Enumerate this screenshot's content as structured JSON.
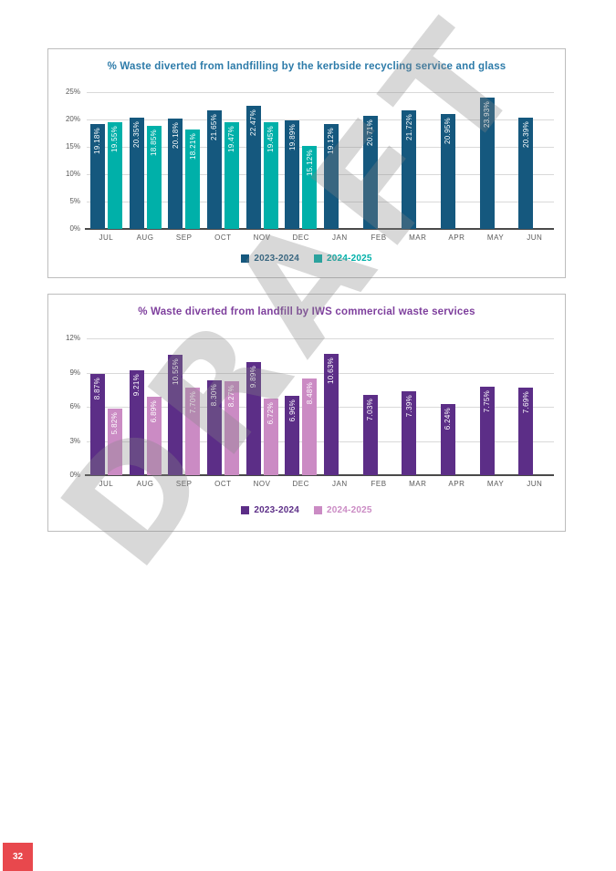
{
  "page": {
    "watermark": "DRAFT",
    "number": "32",
    "badge_color": "#e8484d"
  },
  "charts": [
    {
      "type": "bar",
      "title": "% Waste diverted from landfilling by the kerbside recycling service and glass",
      "title_color": "#2d7ba9",
      "categories": [
        "JUL",
        "AUG",
        "SEP",
        "OCT",
        "NOV",
        "DEC",
        "JAN",
        "FEB",
        "MAR",
        "APR",
        "MAY",
        "JUN"
      ],
      "series": [
        {
          "name": "2023-2024",
          "color": "#15587e",
          "values": [
            19.18,
            20.35,
            20.18,
            21.65,
            22.47,
            19.89,
            19.12,
            20.71,
            21.72,
            20.95,
            23.93,
            20.39
          ]
        },
        {
          "name": "2024-2025",
          "color": "#00b0a9",
          "values": [
            19.55,
            18.85,
            18.21,
            19.47,
            19.45,
            15.12,
            null,
            null,
            null,
            null,
            null,
            null
          ]
        }
      ],
      "ylim": [
        0,
        25
      ],
      "yticks": [
        0,
        5,
        10,
        15,
        20,
        25
      ],
      "ytick_suffix": "%",
      "value_label_suffix": "%",
      "grid": true,
      "legend_position": "bottom"
    },
    {
      "type": "bar",
      "title": "% Waste diverted from landfill by IWS commercial waste services",
      "title_color": "#7e3f9d",
      "categories": [
        "JUL",
        "AUG",
        "SEP",
        "OCT",
        "NOV",
        "DEC",
        "JAN",
        "FEB",
        "MAR",
        "APR",
        "MAY",
        "JUN"
      ],
      "series": [
        {
          "name": "2023-2024",
          "color": "#5c2e87",
          "values": [
            8.87,
            9.21,
            10.55,
            8.3,
            9.89,
            6.96,
            10.63,
            7.03,
            7.39,
            6.24,
            7.75,
            7.69
          ]
        },
        {
          "name": "2024-2025",
          "color": "#cb8bc4",
          "values": [
            5.82,
            6.89,
            7.7,
            8.27,
            6.72,
            8.48,
            null,
            null,
            null,
            null,
            null,
            null
          ]
        }
      ],
      "ylim": [
        0,
        12
      ],
      "yticks": [
        0,
        3,
        6,
        9,
        12
      ],
      "ytick_suffix": "%",
      "value_label_suffix": "%",
      "grid": true,
      "legend_position": "bottom"
    }
  ]
}
